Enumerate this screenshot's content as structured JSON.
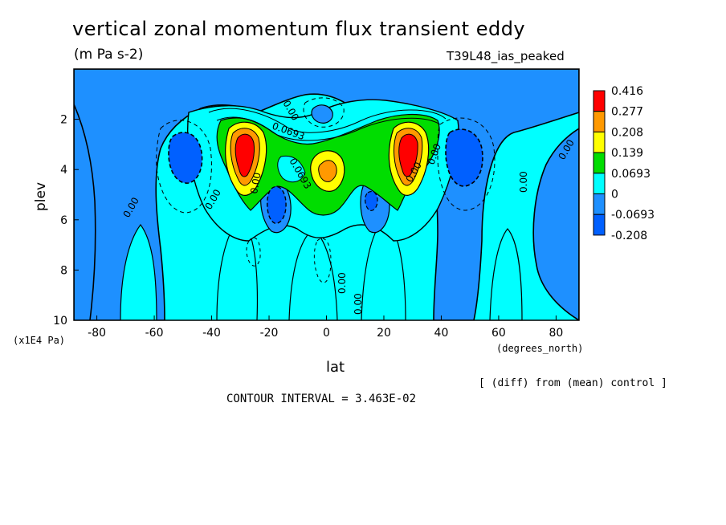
{
  "title": "vertical zonal momentum flux transient eddy",
  "units": "(m Pa s-2)",
  "run_label": "T39L48_ias_peaked",
  "x_axis": {
    "label": "lat",
    "units_label": "(degrees_north)",
    "ticks": [
      "-80",
      "-60",
      "-40",
      "-20",
      "0",
      "20",
      "40",
      "60",
      "80"
    ]
  },
  "y_axis": {
    "label": "plev",
    "units_label": "(x1E4 Pa)",
    "ticks": [
      "2",
      "4",
      "6",
      "8",
      "10"
    ]
  },
  "legend": {
    "labels": [
      "0.416",
      "0.277",
      "0.208",
      "0.139",
      "0.0693",
      "0",
      "-0.0693",
      "-0.208"
    ],
    "colors": [
      "#ff0000",
      "#ff9900",
      "#ffff00",
      "#00dd00",
      "#00ffff",
      "#1e90ff",
      "#0060ff"
    ]
  },
  "contour_labels": [
    "0.00",
    "0.0693",
    "0.0693",
    "0.00",
    "0.00",
    "0.00",
    "0.00",
    "0.00",
    "0.00",
    "0.00",
    "0.00",
    "0.00"
  ],
  "diff_note": "[ (diff) from (mean) control ]",
  "contour_interval": "CONTOUR INTERVAL = 3.463E-02",
  "chart_data": {
    "type": "heatmap",
    "title": "vertical zonal momentum flux transient eddy",
    "subtitle": "(m Pa s-2)",
    "xlabel": "lat",
    "ylabel": "plev",
    "xlim": [
      -88,
      88
    ],
    "ylim": [
      10,
      0
    ],
    "levels": [
      -0.208,
      -0.0693,
      0,
      0.0693,
      0.139,
      0.208,
      0.277,
      0.416
    ],
    "contour_interval": 0.03463,
    "features": [
      {
        "lat": -29,
        "plev": 3.2,
        "value": 0.416
      },
      {
        "lat": 29,
        "plev": 3.2,
        "value": 0.416
      },
      {
        "lat": 1,
        "plev": 4.0,
        "value": 0.208
      },
      {
        "lat": -50,
        "plev": 3.6,
        "value": -0.208
      },
      {
        "lat": 50,
        "plev": 3.6,
        "value": -0.208
      },
      {
        "lat": -17,
        "plev": 5.4,
        "value": -0.208
      },
      {
        "lat": 17,
        "plev": 5.2,
        "value": -0.0693
      }
    ]
  }
}
